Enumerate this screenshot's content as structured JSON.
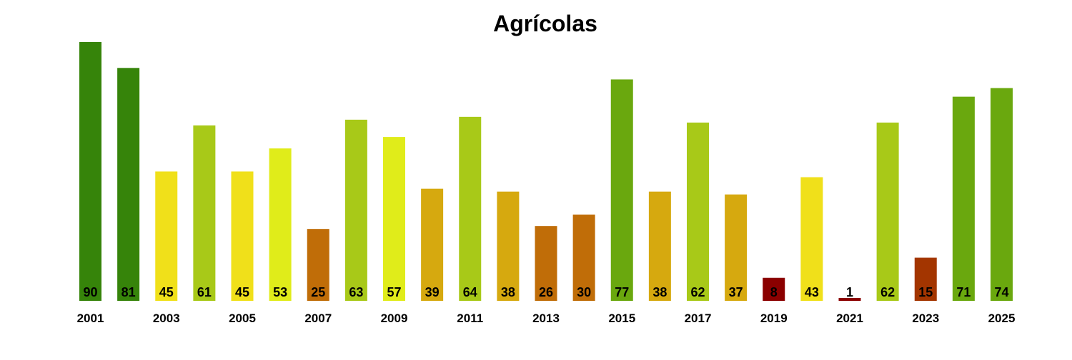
{
  "chart_data": {
    "type": "bar",
    "title": "Agrícolas",
    "xlabel": "",
    "ylabel": "",
    "ylim": [
      0,
      90
    ],
    "grid": false,
    "categories": [
      "2001",
      "2002",
      "2003",
      "2004",
      "2005",
      "2006",
      "2007",
      "2008",
      "2009",
      "2010",
      "2011",
      "2012",
      "2013",
      "2014",
      "2015",
      "2016",
      "2017",
      "2018",
      "2019",
      "2020",
      "2021",
      "2022",
      "2023",
      "2024",
      "2025"
    ],
    "x_tick_labels_shown": [
      "2001",
      "2003",
      "2005",
      "2007",
      "2009",
      "2011",
      "2013",
      "2015",
      "2017",
      "2019",
      "2021",
      "2023",
      "2025"
    ],
    "values": [
      90,
      81,
      45,
      61,
      45,
      53,
      25,
      63,
      57,
      39,
      64,
      38,
      26,
      30,
      77,
      38,
      62,
      37,
      8,
      43,
      1,
      62,
      15,
      71,
      74
    ],
    "colors": [
      "#36840a",
      "#36840a",
      "#f0e01a",
      "#a8c918",
      "#f0e01a",
      "#e0ec1a",
      "#c06d08",
      "#a8c918",
      "#e0ec1a",
      "#d6a90f",
      "#a8c918",
      "#d6a90f",
      "#c06d08",
      "#c06d08",
      "#6aa80e",
      "#d6a90f",
      "#a8c918",
      "#d6a90f",
      "#8b0000",
      "#f0e01a",
      "#8b0000",
      "#a8c918",
      "#a33500",
      "#6aa80e",
      "#6aa80e"
    ]
  }
}
